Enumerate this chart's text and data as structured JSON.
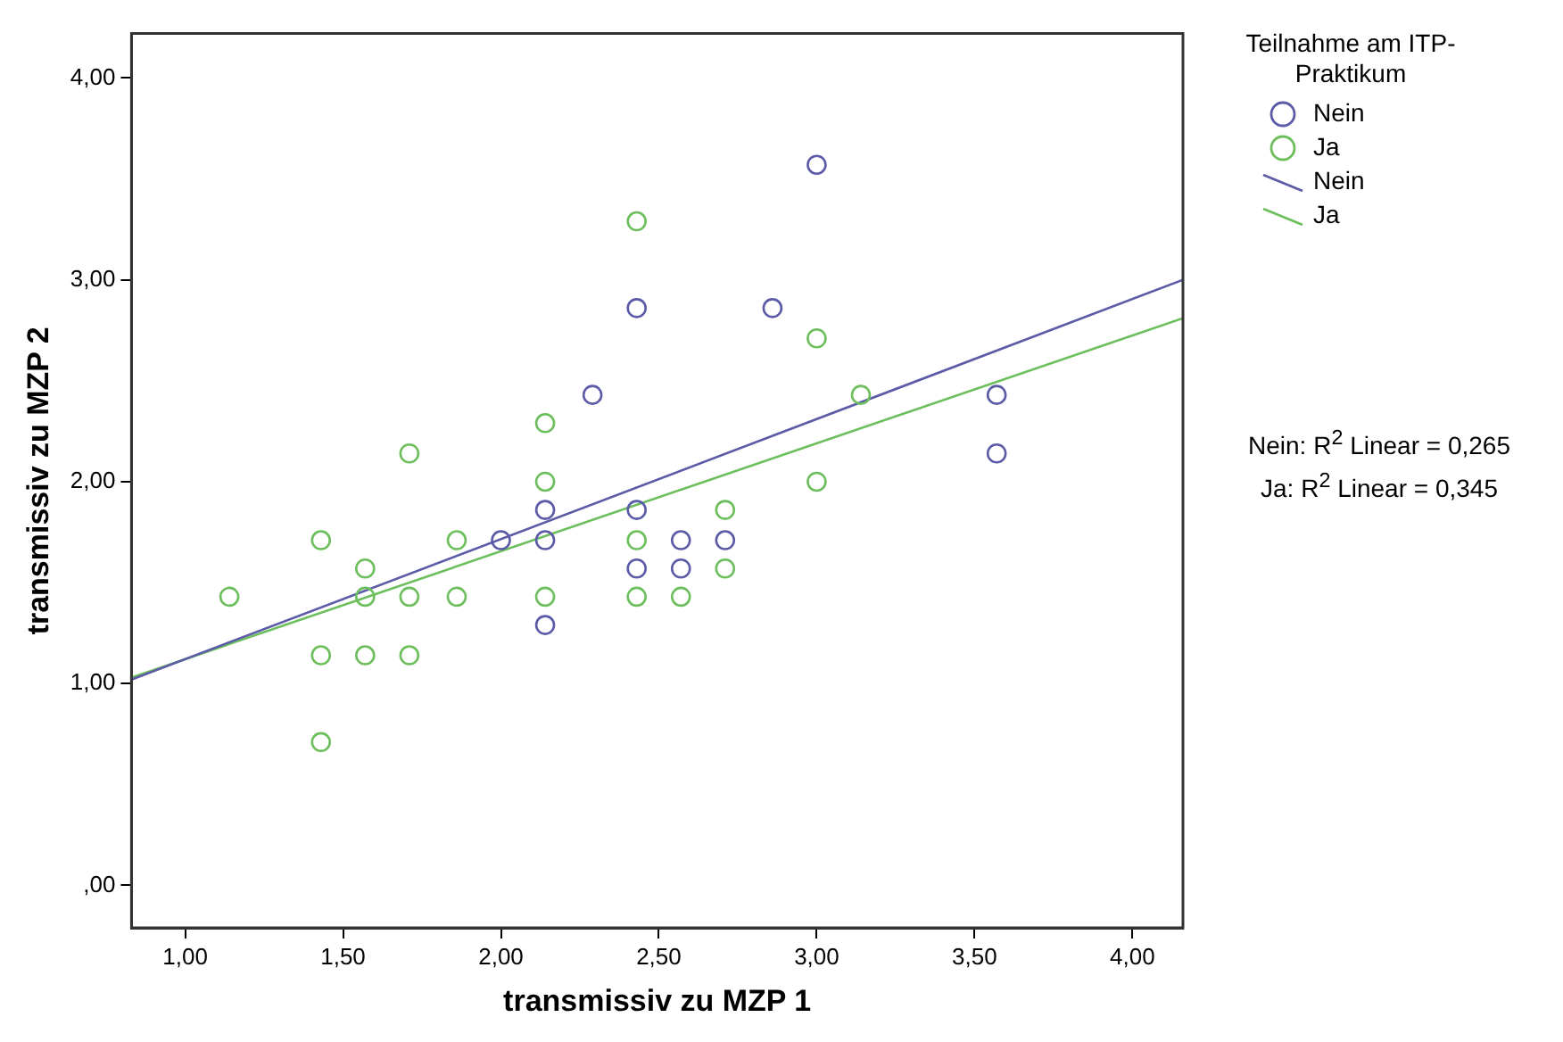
{
  "chart_data": {
    "type": "scatter",
    "xlabel": "transmissiv zu MZP 1",
    "ylabel": "transmissiv zu MZP 2",
    "legend_title": "Teilnahme am ITP-Praktikum",
    "xlim": [
      0.83,
      4.16
    ],
    "ylim": [
      -0.21,
      4.22
    ],
    "xticks": [
      {
        "value": 1,
        "label": "1,00"
      },
      {
        "value": 1.5,
        "label": "1,50"
      },
      {
        "value": 2,
        "label": "2,00"
      },
      {
        "value": 2.5,
        "label": "2,50"
      },
      {
        "value": 3,
        "label": "3,00"
      },
      {
        "value": 3.5,
        "label": "3,50"
      },
      {
        "value": 4,
        "label": "4,00"
      }
    ],
    "yticks": [
      {
        "value": 0,
        "label": ",00"
      },
      {
        "value": 1,
        "label": "1,00"
      },
      {
        "value": 2,
        "label": "2,00"
      },
      {
        "value": 3,
        "label": "3,00"
      },
      {
        "value": 4,
        "label": "4,00"
      }
    ],
    "grid": false,
    "legend": "right",
    "series": [
      {
        "name": "Nein",
        "type": "scatter",
        "color": "#5b5ba8",
        "x": [
          3.0,
          2.43,
          2.86,
          2.29,
          3.57,
          3.57,
          2.14,
          2.14,
          2.0,
          2.43,
          2.43,
          2.57,
          2.57,
          2.71,
          2.14
        ],
        "values": [
          3.57,
          2.86,
          2.86,
          2.43,
          2.43,
          2.14,
          1.86,
          1.71,
          1.71,
          1.86,
          1.57,
          1.71,
          1.57,
          1.71,
          1.29
        ]
      },
      {
        "name": "Ja",
        "type": "scatter",
        "color": "#6cbf5c",
        "x": [
          2.43,
          2.14,
          1.71,
          3.0,
          3.14,
          3.0,
          2.14,
          1.43,
          1.14,
          1.57,
          1.57,
          1.71,
          1.86,
          1.86,
          2.14,
          1.43,
          1.57,
          1.71,
          1.43,
          2.43,
          2.43,
          2.57,
          2.71,
          2.71
        ],
        "values": [
          3.29,
          2.29,
          2.14,
          2.71,
          2.43,
          2.0,
          2.0,
          1.71,
          1.43,
          1.57,
          1.43,
          1.43,
          1.71,
          1.43,
          1.43,
          1.14,
          1.14,
          1.14,
          0.71,
          1.71,
          1.43,
          1.43,
          1.86,
          1.57
        ]
      },
      {
        "name": "Nein",
        "type": "line",
        "color": "#5b5ba8",
        "x": [
          0.83,
          4.16
        ],
        "values": [
          1.02,
          3.0
        ]
      },
      {
        "name": "Ja",
        "type": "line",
        "color": "#6cbf5c",
        "x": [
          0.83,
          4.16
        ],
        "values": [
          1.03,
          2.81
        ]
      }
    ],
    "annotations": [
      "Nein: R$^{2}$ Linear = 0,265",
      "Ja: R$^{2}$ Linear = 0,345"
    ]
  }
}
